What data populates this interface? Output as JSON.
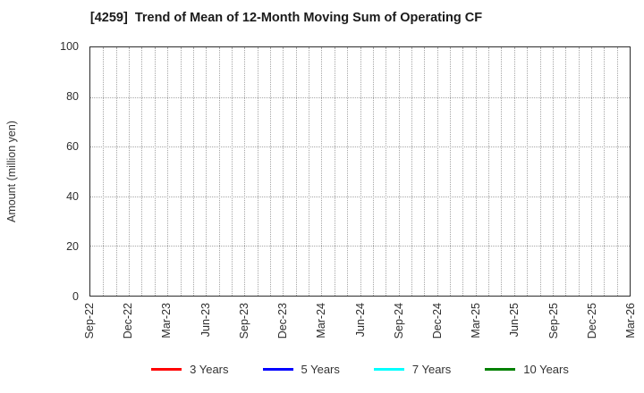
{
  "chart_data": {
    "type": "line",
    "title": "[4259]  Trend of Mean of 12-Month Moving Sum of Operating CF",
    "xlabel": "",
    "ylabel": "Amount (million yen)",
    "ylim": [
      0,
      100
    ],
    "yticks": [
      0,
      20,
      40,
      60,
      80,
      100
    ],
    "x_tick_labels": [
      "Sep-22",
      "Dec-22",
      "Mar-23",
      "Jun-23",
      "Sep-23",
      "Dec-23",
      "Mar-24",
      "Jun-24",
      "Sep-24",
      "Dec-24",
      "Mar-25",
      "Jun-25",
      "Sep-25",
      "Dec-25",
      "Mar-26"
    ],
    "x_months_total": 42,
    "x_label_interval_months": 3,
    "grid": true,
    "grid_style": "dotted",
    "legend_position": "bottom-center",
    "plot_empty": true,
    "series": [
      {
        "name": "3 Years",
        "color": "#ff0000",
        "x": [],
        "values": []
      },
      {
        "name": "5 Years",
        "color": "#0000ff",
        "x": [],
        "values": []
      },
      {
        "name": "7 Years",
        "color": "#00ffff",
        "x": [],
        "values": []
      },
      {
        "name": "10 Years",
        "color": "#008000",
        "x": [],
        "values": []
      }
    ]
  }
}
